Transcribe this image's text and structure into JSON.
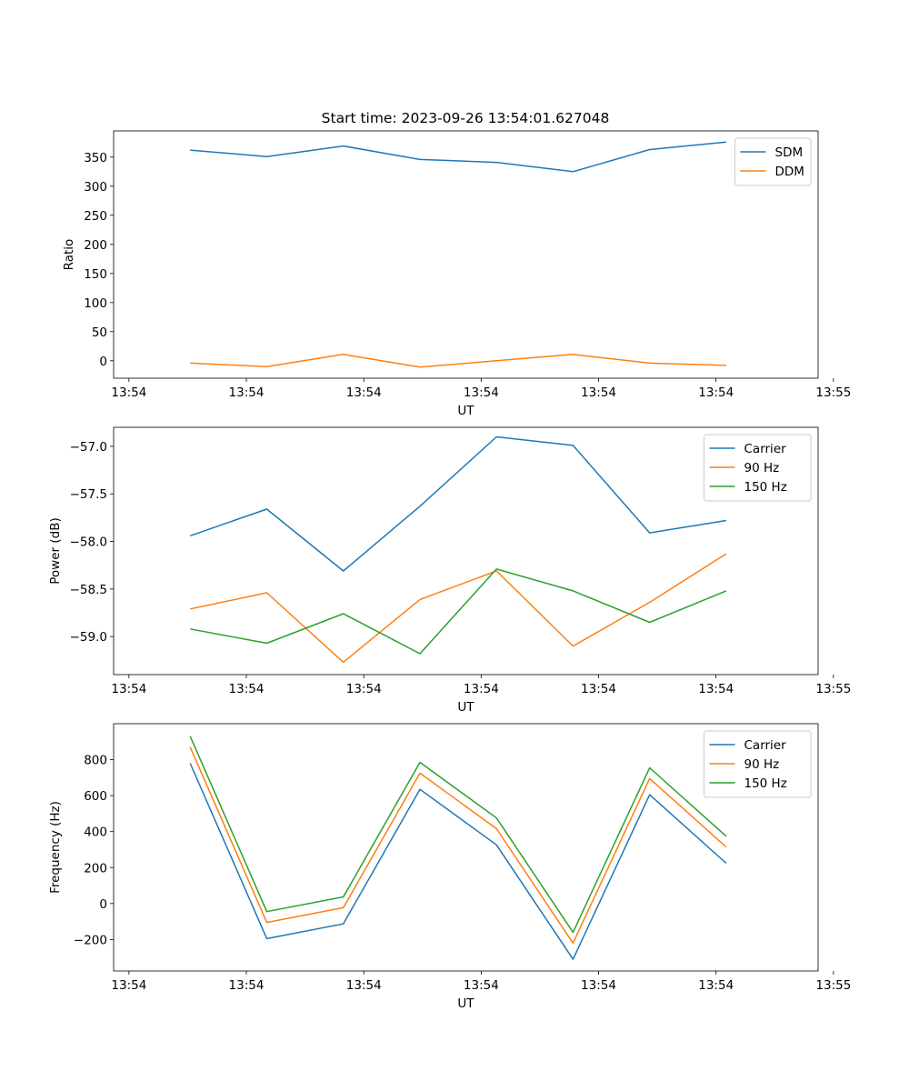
{
  "figure_title": "Start time: 2023-09-26 13:54:01.627048",
  "colors": {
    "blue": "#1f77b4",
    "orange": "#ff7f0e",
    "green": "#2ca02c"
  },
  "chart_data": [
    {
      "type": "line",
      "xlabel": "UT",
      "ylabel": "Ratio",
      "x_ticks": [
        "13:54",
        "13:54",
        "13:54",
        "13:54",
        "13:54",
        "13:54",
        "13:55"
      ],
      "xlim": [
        0,
        9.2
      ],
      "x_tick_positions": [
        0.2,
        1.733,
        3.267,
        4.8,
        6.333,
        7.867,
        9.4
      ],
      "ylim": [
        -30,
        395
      ],
      "y_ticks": [
        0,
        50,
        100,
        150,
        200,
        250,
        300,
        350
      ],
      "x": [
        1,
        2,
        3,
        4,
        5,
        6,
        7,
        8
      ],
      "legend": "top-right",
      "series": [
        {
          "name": "SDM",
          "color": "#1f77b4",
          "values": [
            362,
            351,
            369,
            346,
            341,
            325,
            363,
            376
          ]
        },
        {
          "name": "DDM",
          "color": "#ff7f0e",
          "values": [
            -4,
            -10,
            11,
            -11,
            0,
            11,
            -4,
            -8
          ]
        }
      ]
    },
    {
      "type": "line",
      "xlabel": "UT",
      "ylabel": "Power (dB)",
      "x_ticks": [
        "13:54",
        "13:54",
        "13:54",
        "13:54",
        "13:54",
        "13:54",
        "13:55"
      ],
      "xlim": [
        0,
        9.2
      ],
      "x_tick_positions": [
        0.2,
        1.733,
        3.267,
        4.8,
        6.333,
        7.867,
        9.4
      ],
      "ylim": [
        -59.4,
        -56.8
      ],
      "y_ticks": [
        -59.0,
        -58.5,
        -58.0,
        -57.5,
        -57.0
      ],
      "y_tick_labels": [
        "−59.0",
        "−58.5",
        "−58.0",
        "−57.5",
        "−57.0"
      ],
      "x": [
        1,
        2,
        3,
        4,
        5,
        6,
        7,
        8
      ],
      "legend": "top-right",
      "series": [
        {
          "name": "Carrier",
          "color": "#1f77b4",
          "values": [
            -57.94,
            -57.66,
            -58.31,
            -57.63,
            -56.9,
            -56.99,
            -57.91,
            -57.78
          ]
        },
        {
          "name": "90 Hz",
          "color": "#ff7f0e",
          "values": [
            -58.71,
            -58.54,
            -59.27,
            -58.61,
            -58.31,
            -59.1,
            -58.64,
            -58.13
          ]
        },
        {
          "name": "150 Hz",
          "color": "#2ca02c",
          "values": [
            -58.92,
            -59.07,
            -58.76,
            -59.18,
            -58.29,
            -58.52,
            -58.85,
            -58.52
          ]
        }
      ]
    },
    {
      "type": "line",
      "xlabel": "UT",
      "ylabel": "Frequency (Hz)",
      "x_ticks": [
        "13:54",
        "13:54",
        "13:54",
        "13:54",
        "13:54",
        "13:54",
        "13:55"
      ],
      "xlim": [
        0,
        9.2
      ],
      "x_tick_positions": [
        0.2,
        1.733,
        3.267,
        4.8,
        6.333,
        7.867,
        9.4
      ],
      "ylim": [
        -375,
        1000
      ],
      "y_ticks": [
        -200,
        0,
        200,
        400,
        600,
        800
      ],
      "y_tick_labels": [
        "−200",
        "0",
        "200",
        "400",
        "600",
        "800"
      ],
      "x": [
        1,
        2,
        3,
        4,
        5,
        6,
        7,
        8
      ],
      "legend": "top-right",
      "series": [
        {
          "name": "Carrier",
          "color": "#1f77b4",
          "values": [
            780,
            -195,
            -113,
            635,
            326,
            -310,
            605,
            224
          ]
        },
        {
          "name": "90 Hz",
          "color": "#ff7f0e",
          "values": [
            870,
            -105,
            -23,
            725,
            416,
            -220,
            695,
            314
          ]
        },
        {
          "name": "150 Hz",
          "color": "#2ca02c",
          "values": [
            930,
            -45,
            37,
            785,
            476,
            -160,
            755,
            374
          ]
        }
      ]
    }
  ]
}
